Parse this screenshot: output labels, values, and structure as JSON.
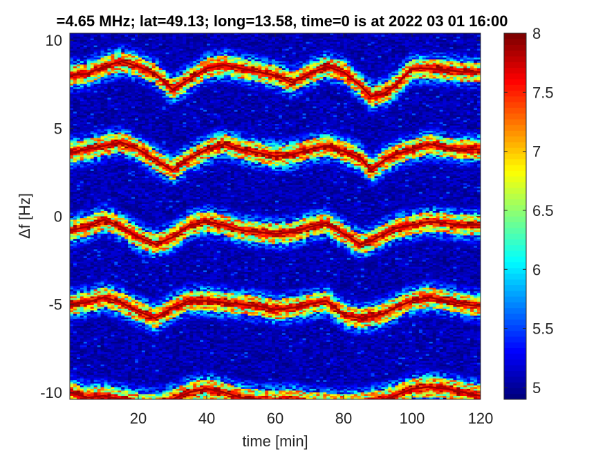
{
  "chart_data": {
    "type": "heatmap",
    "title": "=4.65 MHz;  lat=49.13; long=13.58, time=0 is at 2022 03 01 16:00",
    "xlabel": "time [min]",
    "ylabel": "Δf [Hz]",
    "xlim": [
      0,
      120
    ],
    "ylim": [
      -10.4,
      10.4
    ],
    "xticks": [
      20,
      40,
      60,
      80,
      100,
      120
    ],
    "yticks": [
      10,
      5,
      0,
      -5,
      -10
    ],
    "ytick_labels": [
      "10",
      "5",
      "0",
      "-5",
      "-10"
    ],
    "colorbar": {
      "clim": [
        4.9,
        8
      ],
      "ticks": [
        8,
        7.5,
        7,
        6.5,
        6,
        5.5,
        5
      ],
      "tick_labels": [
        "8",
        "7.5",
        "7",
        "6.5",
        "6",
        "5.5",
        "5"
      ],
      "colormap": "jet"
    },
    "background_value": 5.0,
    "series": [
      {
        "offset": 10,
        "x": [
          0,
          5,
          10,
          15,
          20,
          25,
          30,
          35,
          40,
          45,
          50,
          55,
          60,
          65,
          70,
          75,
          80,
          85,
          88,
          92,
          95,
          100,
          105,
          110,
          115,
          120
        ],
        "y": [
          -2.0,
          -1.9,
          -1.5,
          -1.2,
          -1.5,
          -1.9,
          -2.8,
          -2.2,
          -1.6,
          -1.4,
          -1.6,
          -1.8,
          -2.0,
          -2.4,
          -1.9,
          -1.5,
          -1.8,
          -2.6,
          -3.2,
          -3.0,
          -2.6,
          -1.6,
          -1.6,
          -1.7,
          -1.8,
          -1.8
        ]
      },
      {
        "offset": 5,
        "x": [
          0,
          5,
          10,
          15,
          20,
          25,
          30,
          35,
          40,
          45,
          50,
          55,
          60,
          65,
          70,
          75,
          80,
          85,
          88,
          92,
          95,
          100,
          105,
          110,
          115,
          120
        ],
        "y": [
          -1.4,
          -1.2,
          -1.0,
          -0.8,
          -1.2,
          -1.8,
          -2.4,
          -1.7,
          -1.2,
          -0.9,
          -1.2,
          -1.4,
          -1.6,
          -1.5,
          -1.2,
          -1.0,
          -1.3,
          -1.7,
          -2.4,
          -1.8,
          -1.5,
          -1.2,
          -0.9,
          -1.1,
          -1.2,
          -1.2
        ]
      },
      {
        "offset": 0,
        "x": [
          0,
          5,
          10,
          15,
          20,
          25,
          30,
          35,
          40,
          45,
          50,
          55,
          60,
          65,
          70,
          75,
          80,
          85,
          88,
          92,
          95,
          100,
          105,
          110,
          115,
          120
        ],
        "y": [
          -0.8,
          -0.6,
          -0.2,
          -0.6,
          -1.2,
          -1.6,
          -1.2,
          -0.5,
          -0.3,
          -0.5,
          -0.8,
          -0.9,
          -1.0,
          -0.9,
          -0.6,
          -0.4,
          -1.0,
          -1.6,
          -1.4,
          -1.0,
          -0.7,
          -0.5,
          -0.3,
          -0.4,
          -0.5,
          -0.5
        ]
      },
      {
        "offset": -5,
        "x": [
          0,
          5,
          10,
          15,
          20,
          25,
          30,
          35,
          40,
          45,
          50,
          55,
          60,
          65,
          70,
          75,
          80,
          85,
          88,
          92,
          95,
          100,
          105,
          110,
          115,
          120
        ],
        "y": [
          0.0,
          0.1,
          0.4,
          0.1,
          -0.4,
          -0.8,
          -0.2,
          0.2,
          0.2,
          0.1,
          0.0,
          -0.1,
          -0.3,
          -0.2,
          0.0,
          0.2,
          -0.6,
          -0.8,
          -0.7,
          -0.5,
          -0.2,
          0.2,
          0.4,
          0.2,
          0.0,
          -0.1
        ]
      },
      {
        "offset": -10,
        "x": [
          0,
          5,
          10,
          15,
          20,
          25,
          30,
          35,
          40,
          45,
          50,
          55,
          60,
          65,
          70,
          75,
          80,
          85,
          88,
          92,
          95,
          100,
          105,
          110,
          115,
          120
        ],
        "y": [
          0.0,
          -0.3,
          -0.2,
          -0.4,
          -0.6,
          -0.7,
          -0.4,
          0.0,
          0.2,
          0.0,
          -0.3,
          -0.4,
          -0.5,
          -0.4,
          -0.6,
          -0.6,
          -0.7,
          -0.6,
          -0.5,
          -0.4,
          -0.2,
          0.2,
          0.3,
          0.2,
          0.0,
          -0.2
        ]
      }
    ]
  }
}
